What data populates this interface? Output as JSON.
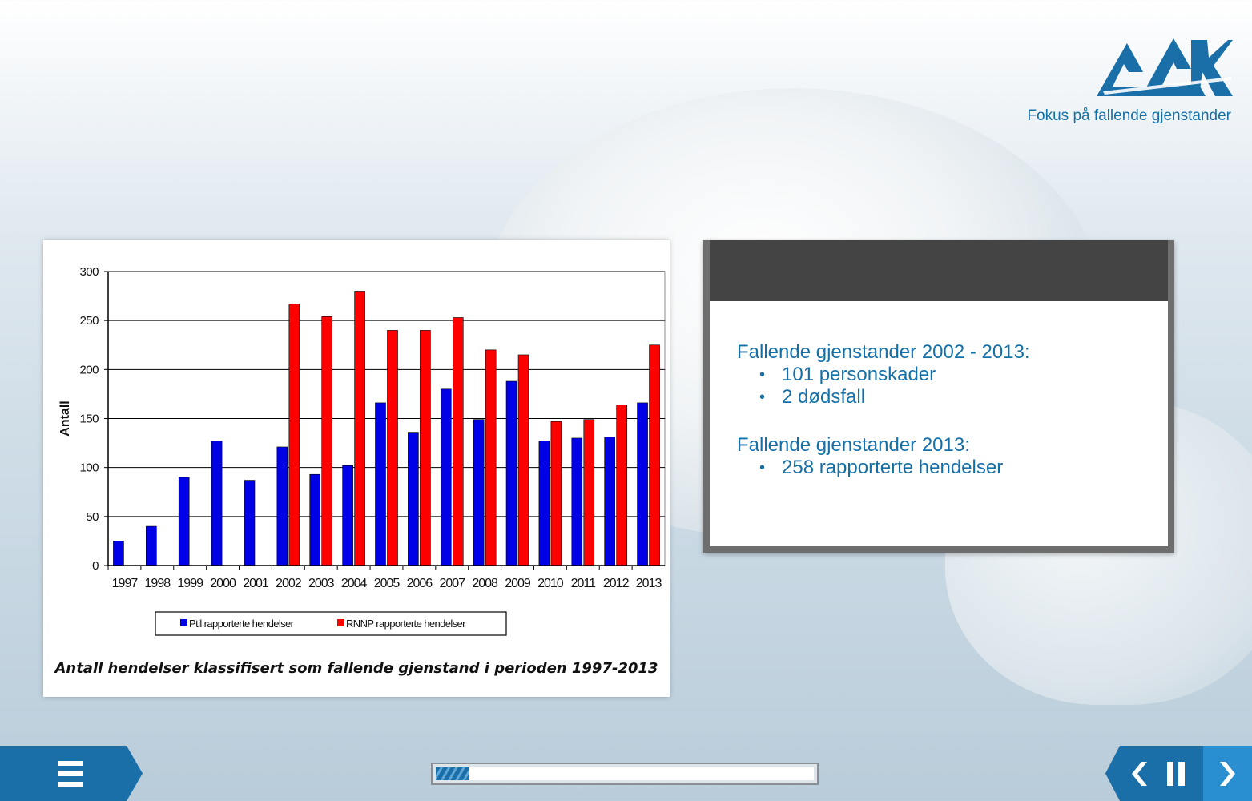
{
  "header": {
    "logo_icon": "aak-logo-icon",
    "tagline": "Fokus på fallende gjenstander"
  },
  "chart_data": {
    "type": "bar",
    "categories": [
      "1997",
      "1998",
      "1999",
      "2000",
      "2001",
      "2002",
      "2003",
      "2004",
      "2005",
      "2006",
      "2007",
      "2008",
      "2009",
      "2010",
      "2011",
      "2012",
      "2013"
    ],
    "series": [
      {
        "name": "Ptil rapporterte hendelser",
        "color": "#0000e6",
        "values": [
          25,
          40,
          90,
          127,
          87,
          121,
          93,
          102,
          166,
          136,
          180,
          149,
          188,
          127,
          130,
          131,
          166
        ]
      },
      {
        "name": "RNNP rapporterte hendelser",
        "color": "#ff0000",
        "values": [
          null,
          null,
          null,
          null,
          null,
          267,
          254,
          280,
          240,
          240,
          253,
          220,
          215,
          147,
          149,
          164,
          225
        ]
      }
    ],
    "title": "Antall hendelser klassifisert som fallende gjenstand i perioden 1997-2013",
    "xlabel": "",
    "ylabel": "Antall",
    "ylim": [
      0,
      300
    ],
    "yticks": [
      0,
      50,
      100,
      150,
      200,
      250,
      300
    ],
    "grid": true,
    "legend_position": "bottom"
  },
  "info": {
    "heading1": "Fallende gjenstander 2002 - 2013:",
    "bullets1": [
      "101 personskader",
      "2 dødsfall"
    ],
    "heading2": "Fallende gjenstander 2013:",
    "bullets2": [
      "258 rapporterte hendelser"
    ]
  },
  "player": {
    "menu_icon": "menu-icon",
    "progress": 0.09,
    "prev_icon": "chevron-left-icon",
    "pause_icon": "pause-icon",
    "next_icon": "chevron-right-icon",
    "accent": "#1b6fa8"
  }
}
